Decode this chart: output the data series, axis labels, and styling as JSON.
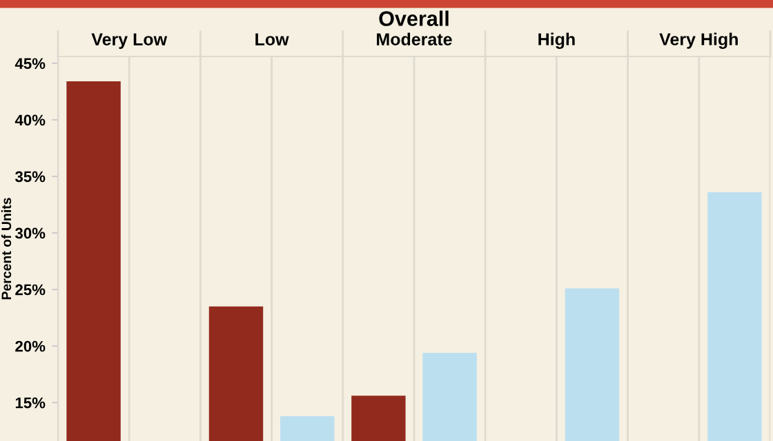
{
  "chart_data": {
    "type": "bar",
    "title": "Overall",
    "ylabel": "Percent of Units",
    "categories": [
      "Very Low",
      "Low",
      "Moderate",
      "High",
      "Very High"
    ],
    "series": [
      {
        "color": "#922b1e",
        "values": [
          43.4,
          23.5,
          15.6,
          null,
          null
        ]
      },
      {
        "color": "#bcdff0",
        "values": [
          null,
          13.8,
          19.4,
          25.1,
          33.6
        ]
      }
    ],
    "ylim": [
      11.6,
      45.6
    ],
    "yticks": [
      {
        "value": 15,
        "label": "15%"
      },
      {
        "value": 20,
        "label": "20%"
      },
      {
        "value": 25,
        "label": "25%"
      },
      {
        "value": 30,
        "label": "30%"
      },
      {
        "value": 35,
        "label": "35%"
      },
      {
        "value": 40,
        "label": "40%"
      },
      {
        "value": 45,
        "label": "45%"
      }
    ],
    "grid": "x",
    "legend": false
  }
}
